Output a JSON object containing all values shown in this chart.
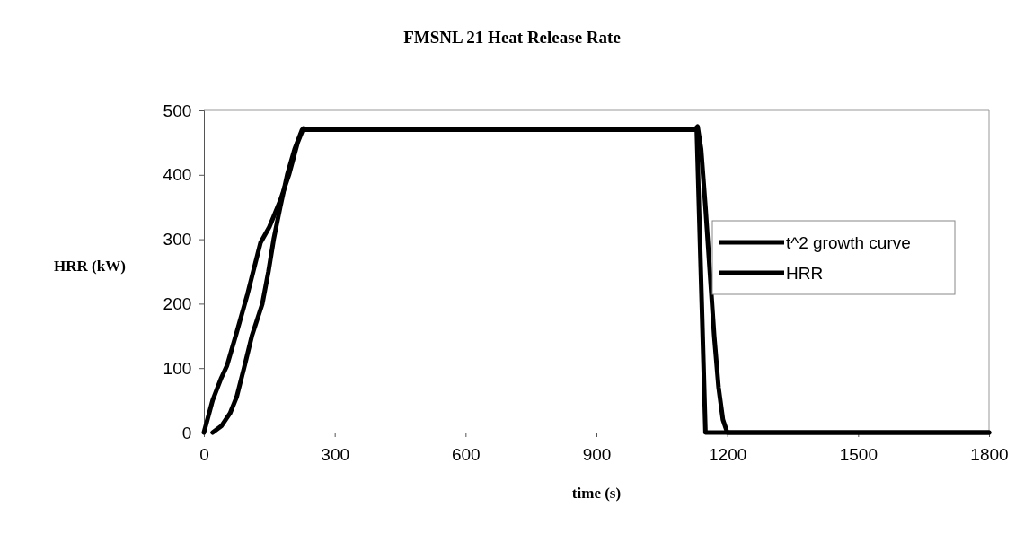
{
  "chart_data": {
    "type": "line",
    "title": "FMSNL 21 Heat Release Rate",
    "xlabel": "time (s)",
    "ylabel": "HRR (kW)",
    "xlim": [
      0,
      1800
    ],
    "xticks": [
      0,
      300,
      600,
      900,
      1200,
      1500,
      1800
    ],
    "ylim": [
      0,
      500
    ],
    "yticks": [
      0,
      100,
      200,
      300,
      400,
      500
    ],
    "grid": false,
    "legend": "right",
    "marker": "none",
    "line_style": "solid",
    "series": [
      {
        "name": "t^2 growth curve",
        "color": "#000000",
        "x": [
          20,
          40,
          60,
          75,
          92,
          110,
          134,
          148,
          160,
          175,
          191,
          208,
          225,
          240,
          600,
          900,
          1130,
          1150,
          1160,
          1500,
          1800
        ],
        "values": [
          0,
          10,
          30,
          55,
          100,
          150,
          200,
          250,
          300,
          350,
          400,
          440,
          470,
          470,
          470,
          470,
          470,
          0,
          0,
          0,
          0
        ]
      },
      {
        "name": "HRR",
        "color": "#000000",
        "x": [
          0,
          20,
          40,
          53,
          75,
          100,
          130,
          150,
          175,
          195,
          215,
          228,
          240,
          600,
          900,
          1125,
          1132,
          1140,
          1150,
          1160,
          1170,
          1180,
          1190,
          1200,
          1500,
          1800
        ],
        "values": [
          0,
          50,
          85,
          104,
          155,
          215,
          295,
          319,
          360,
          400,
          450,
          472,
          470,
          470,
          470,
          470,
          475,
          440,
          350,
          250,
          150,
          70,
          20,
          0,
          0,
          0
        ]
      }
    ]
  }
}
